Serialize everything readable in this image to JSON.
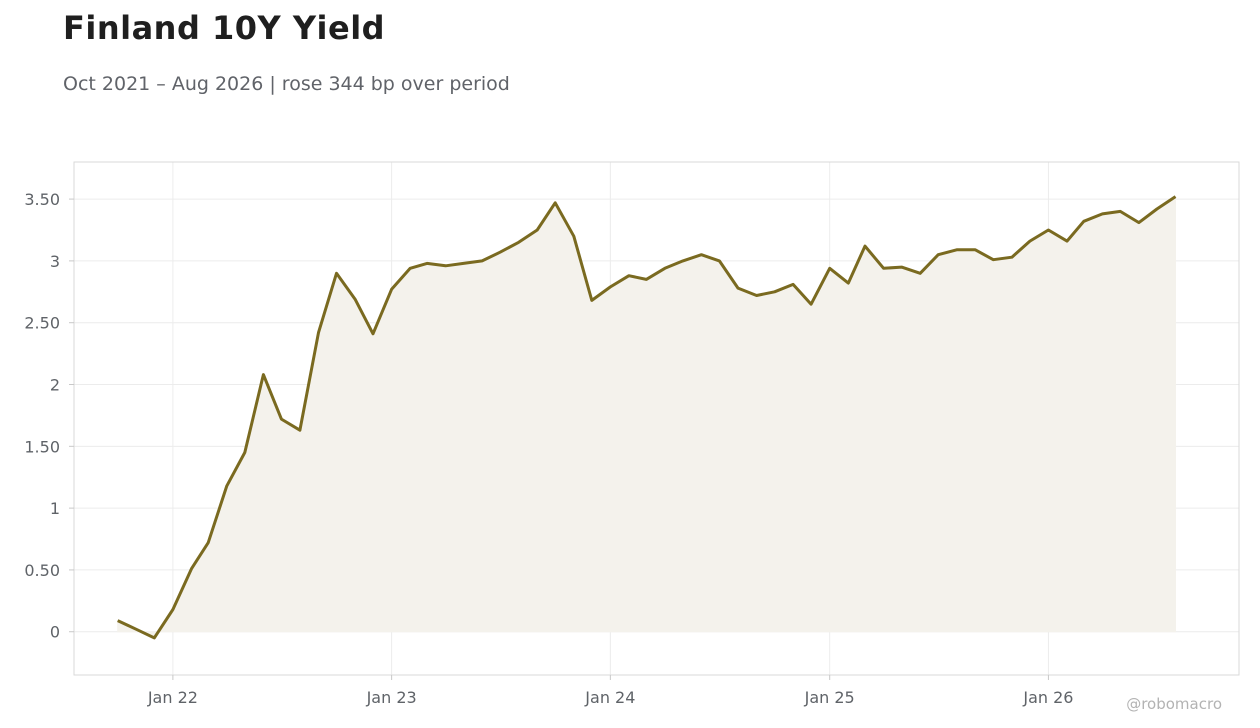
{
  "title": "Finland 10Y Yield",
  "subtitle": "Oct 2021 – Aug 2026 | rose 344 bp over period",
  "watermark": "@robomacro",
  "colors": {
    "line": "#7a6a20",
    "fill": "#f4f2ec",
    "grid": "#ececec",
    "frame": "#d9d9d9"
  },
  "chart_data": {
    "type": "area",
    "title": "Finland 10Y Yield",
    "subtitle": "Oct 2021 – Aug 2026 | rose 344 bp over period",
    "xlabel": "",
    "ylabel": "",
    "grid": true,
    "xlim": [
      "2021-07-20",
      "2026-11-15"
    ],
    "ylim": [
      -0.35,
      3.8
    ],
    "yticks": [
      0,
      0.5,
      1,
      1.5,
      2,
      2.5,
      3,
      3.5
    ],
    "ytick_labels": [
      "0",
      "0.50",
      "1",
      "1.50",
      "2",
      "2.50",
      "3",
      "3.50"
    ],
    "xticks": [
      "2022-01-01",
      "2023-01-01",
      "2024-01-01",
      "2025-01-01",
      "2026-01-01"
    ],
    "xtick_labels": [
      "Jan 22",
      "Jan 23",
      "Jan 24",
      "Jan 25",
      "Jan 26"
    ],
    "series": [
      {
        "x": [
          "2021-10-01",
          "2021-11-01",
          "2021-12-01",
          "2022-01-01",
          "2022-02-01",
          "2022-03-01",
          "2022-04-01",
          "2022-05-01",
          "2022-06-01",
          "2022-07-01",
          "2022-08-01",
          "2022-09-01",
          "2022-10-01",
          "2022-11-01",
          "2022-12-01",
          "2023-01-01",
          "2023-02-01",
          "2023-03-01",
          "2023-04-01",
          "2023-05-01",
          "2023-06-01",
          "2023-07-01",
          "2023-08-01",
          "2023-09-01",
          "2023-10-01",
          "2023-11-01",
          "2023-12-01",
          "2024-01-01",
          "2024-02-01",
          "2024-03-01",
          "2024-04-01",
          "2024-05-01",
          "2024-06-01",
          "2024-07-01",
          "2024-08-01",
          "2024-09-01",
          "2024-10-01",
          "2024-11-01",
          "2024-12-01",
          "2025-01-01",
          "2025-02-01",
          "2025-03-01",
          "2025-04-01",
          "2025-05-01",
          "2025-06-01",
          "2025-07-01",
          "2025-08-01",
          "2025-09-01",
          "2025-10-01",
          "2025-11-01",
          "2025-12-01",
          "2026-01-01",
          "2026-02-01",
          "2026-03-01",
          "2026-04-01",
          "2026-05-01",
          "2026-06-01",
          "2026-07-01",
          "2026-08-01"
        ],
        "y": [
          0.09,
          0.02,
          -0.05,
          0.18,
          0.51,
          0.72,
          1.18,
          1.45,
          2.08,
          1.72,
          1.63,
          2.42,
          2.9,
          2.69,
          2.41,
          2.77,
          2.94,
          2.98,
          2.96,
          2.98,
          3.0,
          3.07,
          3.15,
          3.25,
          3.47,
          3.2,
          2.68,
          2.79,
          2.88,
          2.85,
          2.94,
          3.0,
          3.05,
          3.0,
          2.78,
          2.72,
          2.75,
          2.81,
          2.65,
          2.94,
          2.82,
          3.12,
          2.94,
          2.95,
          2.9,
          3.05,
          3.09,
          3.09,
          3.01,
          3.03,
          3.16,
          3.25,
          3.16,
          3.32,
          3.38,
          3.4,
          3.31,
          3.42,
          3.52
        ]
      }
    ]
  }
}
